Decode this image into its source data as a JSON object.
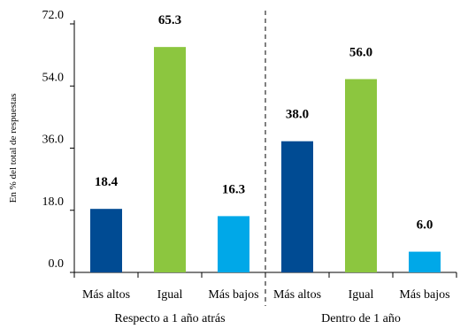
{
  "chart_data": {
    "type": "bar",
    "ylabel": "En % del total de respuestas",
    "ylim": [
      0,
      72
    ],
    "yticks": [
      "0.0",
      "18.0",
      "36.0",
      "54.0",
      "72.0"
    ],
    "grid": false,
    "groups": [
      {
        "label": "Respecto  a 1 año atrás",
        "categories": [
          "Más altos",
          "Igual",
          "Más bajos"
        ],
        "values": [
          18.4,
          65.3,
          16.3
        ],
        "value_labels": [
          "18.4",
          "65.3",
          "16.3"
        ]
      },
      {
        "label": "Dentro  de 1 año",
        "categories": [
          "Más altos",
          "Igual",
          "Más bajos"
        ],
        "values": [
          38.0,
          56.0,
          6.0
        ],
        "value_labels": [
          "38.0",
          "56.0",
          "6.0"
        ]
      }
    ],
    "colors": [
      "#004b93",
      "#8cc63f",
      "#00a8e8"
    ],
    "divider": "dashed"
  }
}
